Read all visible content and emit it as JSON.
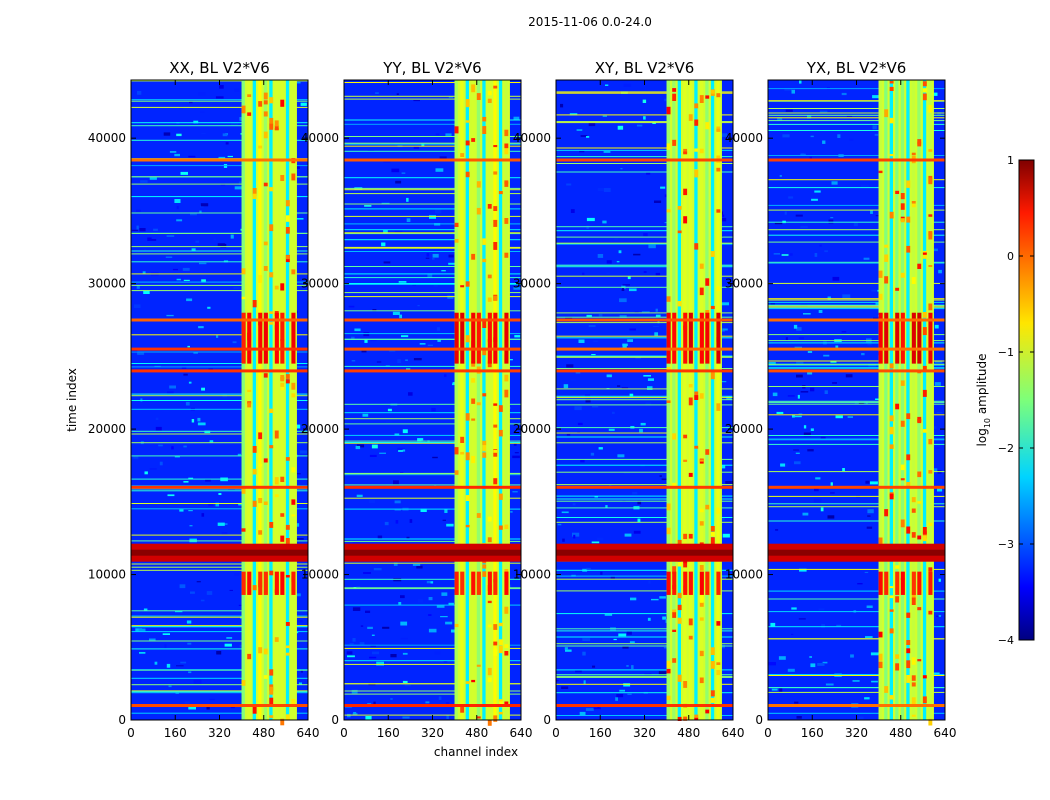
{
  "figure_title": "2015-11-06 0.0-24.0",
  "chart_data": {
    "type": "heatmap",
    "panels": [
      {
        "title": "XX, BL V2*V6",
        "polarization": "XX"
      },
      {
        "title": "YY, BL V2*V6",
        "polarization": "YY"
      },
      {
        "title": "XY, BL V2*V6",
        "polarization": "XY"
      },
      {
        "title": "YX, BL V2*V6",
        "polarization": "YX"
      }
    ],
    "xlabel": "channel index",
    "ylabel": "time index",
    "xlim": [
      0,
      640
    ],
    "ylim": [
      0,
      44000
    ],
    "xticks": [
      0,
      160,
      320,
      480,
      640
    ],
    "yticks": [
      0,
      10000,
      20000,
      30000,
      40000
    ],
    "colorbar": {
      "label": "log10 amplitude",
      "label_main": "log",
      "label_sub": "10",
      "label_rest": " amplitude",
      "range": [
        -4,
        1
      ],
      "ticks": [
        -4,
        -3,
        -2,
        -1,
        0,
        1
      ],
      "colormap": "jet"
    },
    "bright_band_channels": [
      400,
      600
    ],
    "strong_rfi_time_rows": [
      1000,
      11500,
      16000,
      24000,
      25500,
      27500,
      38500
    ]
  }
}
